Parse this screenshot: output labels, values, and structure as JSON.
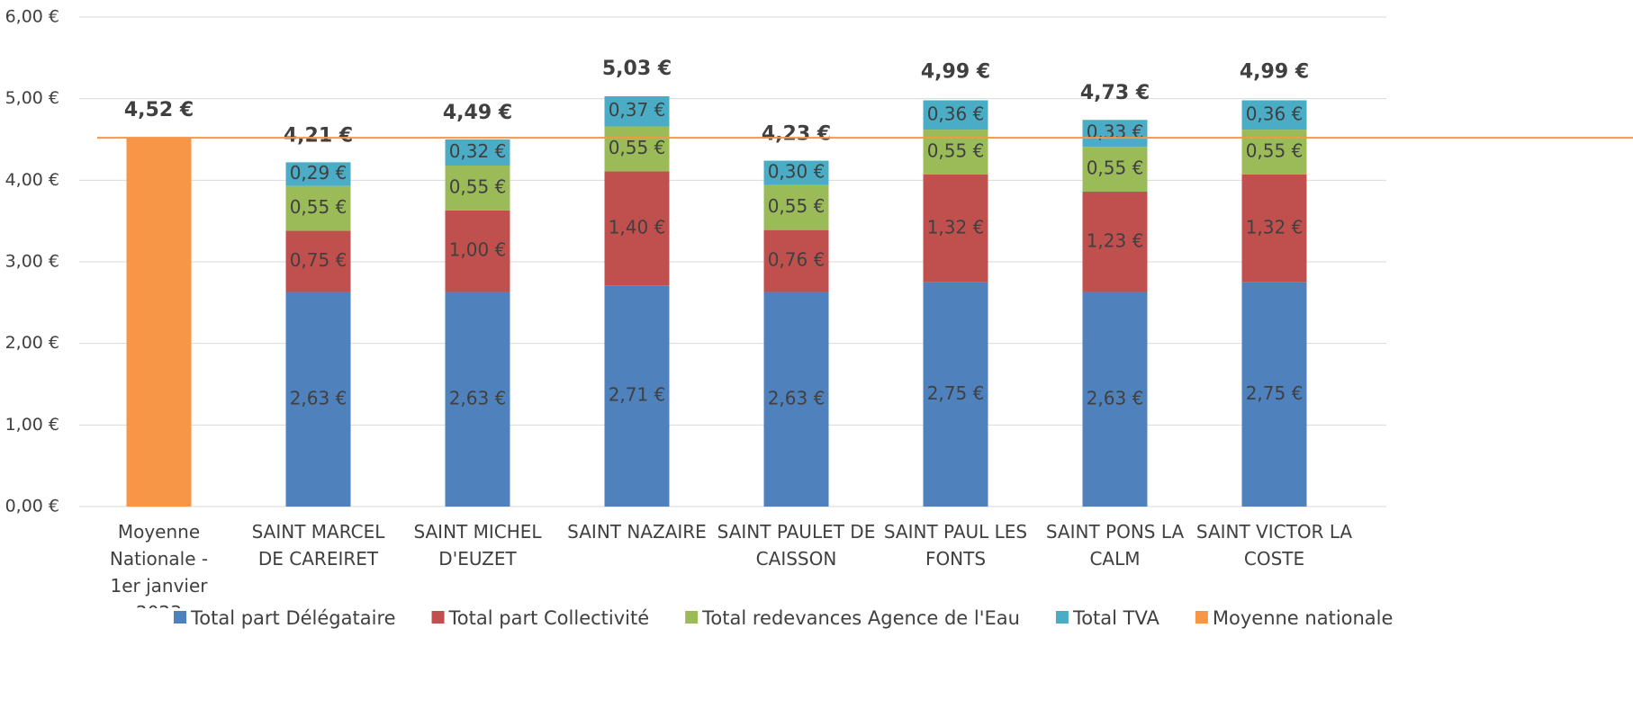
{
  "chart_data": {
    "type": "stacked_bar",
    "categories": [
      "Moyenne Nationale - 1er janvier 2023",
      "SAINT MARCEL DE CAREIRET",
      "SAINT MICHEL D'EUZET",
      "SAINT NAZAIRE",
      "SAINT PAULET DE CAISSON",
      "SAINT PAUL LES FONTS",
      "SAINT PONS LA CALM",
      "SAINT VICTOR LA COSTE"
    ],
    "series": [
      {
        "name": "Total part Délégataire",
        "color": "#4f81bd",
        "values": [
          null,
          2.63,
          2.63,
          2.71,
          2.63,
          2.75,
          2.63,
          2.75
        ],
        "value_labels": [
          null,
          "2,63 €",
          "2,63 €",
          "2,71 €",
          "2,63 €",
          "2,75 €",
          "2,63 €",
          "2,75 €"
        ]
      },
      {
        "name": "Total part Collectivité",
        "color": "#c0504d",
        "values": [
          null,
          0.75,
          1.0,
          1.4,
          0.76,
          1.32,
          1.23,
          1.32
        ],
        "value_labels": [
          null,
          "0,75 €",
          "1,00 €",
          "1,40 €",
          "0,76 €",
          "1,32 €",
          "1,23 €",
          "1,32 €"
        ]
      },
      {
        "name": "Total redevances Agence de l'Eau",
        "color": "#9bbb59",
        "values": [
          null,
          0.55,
          0.55,
          0.55,
          0.55,
          0.55,
          0.55,
          0.55
        ],
        "value_labels": [
          null,
          "0,55 €",
          "0,55 €",
          "0,55 €",
          "0,55 €",
          "0,55 €",
          "0,55 €",
          "0,55 €"
        ]
      },
      {
        "name": "Total TVA",
        "color": "#4bacc6",
        "values": [
          null,
          0.29,
          0.32,
          0.37,
          0.3,
          0.36,
          0.33,
          0.36
        ],
        "value_labels": [
          null,
          "0,29 €",
          "0,32 €",
          "0,37 €",
          "0,30 €",
          "0,36 €",
          "0,33 €",
          "0,36 €"
        ]
      },
      {
        "name": "Moyenne nationale",
        "color": "#f79646",
        "values": [
          4.52,
          null,
          null,
          null,
          null,
          null,
          null,
          null
        ]
      }
    ],
    "totals": [
      4.52,
      4.21,
      4.49,
      5.03,
      4.23,
      4.99,
      4.73,
      4.99
    ],
    "total_labels": [
      "4,52 €",
      "4,21 €",
      "4,49 €",
      "5,03 €",
      "4,23 €",
      "4,99 €",
      "4,73 €",
      "4,99 €"
    ],
    "ylim": [
      0,
      6
    ],
    "yticks": [
      {
        "value": 0,
        "label": "0,00 €"
      },
      {
        "value": 1,
        "label": "1,00 €"
      },
      {
        "value": 2,
        "label": "2,00 €"
      },
      {
        "value": 3,
        "label": "3,00 €"
      },
      {
        "value": 4,
        "label": "4,00 €"
      },
      {
        "value": 5,
        "label": "5,00 €"
      },
      {
        "value": 6,
        "label": "6,00 €"
      }
    ],
    "grid": true,
    "legend": "bottom"
  }
}
